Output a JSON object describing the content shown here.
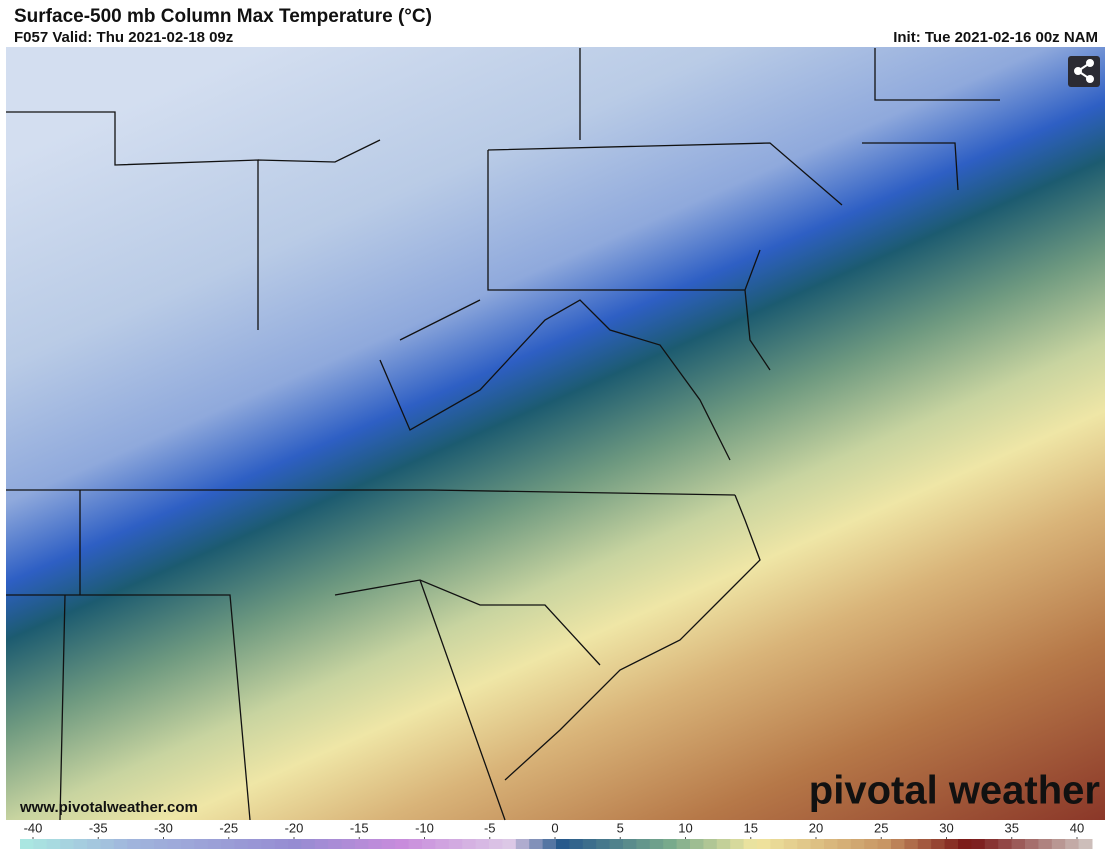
{
  "header": {
    "title": "Surface-500 mb Column Max Temperature (°C)",
    "valid": "F057 Valid: Thu 2021-02-18 09z",
    "init": "Init: Tue 2021-02-16 00z NAM"
  },
  "map": {
    "website": "www.pivotalweather.com",
    "logo": "pivotal weather"
  },
  "colorbar": {
    "ticks": [
      -40,
      -35,
      -30,
      -25,
      -20,
      -15,
      -10,
      -5,
      0,
      5,
      10,
      15,
      20,
      25,
      30,
      35,
      40
    ]
  }
}
